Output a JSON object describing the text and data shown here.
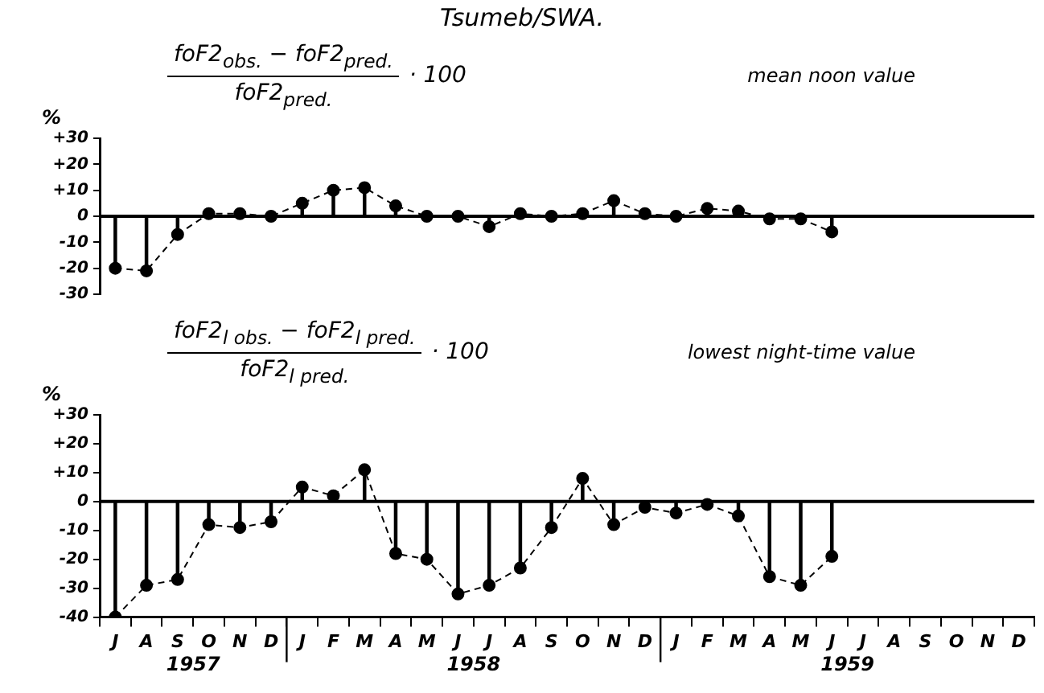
{
  "chart_data": [
    {
      "type": "lollipop",
      "title": "Tsumeb/SWA.",
      "ylabel": "%",
      "categories": [
        null,
        null,
        null,
        null,
        null,
        null,
        null,
        null,
        null,
        null,
        null,
        null,
        null,
        null,
        null,
        null,
        null,
        null,
        null,
        null,
        null,
        null,
        null,
        null,
        null,
        null,
        null,
        null,
        null,
        null
      ],
      "series": [
        {
          "color": "#000000",
          "values": [
            -20,
            -21,
            -7,
            1,
            1,
            0,
            5,
            10,
            11,
            4,
            0,
            0,
            -4,
            1,
            0,
            1,
            6,
            1,
            0,
            3,
            2,
            -1,
            -1,
            -6,
            null,
            null,
            null,
            null,
            null,
            null
          ]
        },
        {
          "type": "line",
          "color": "#000000",
          "marker": "none",
          "line_style": "dashed",
          "values": [
            -20,
            -21,
            -7,
            1,
            1,
            0,
            5,
            10,
            11,
            4,
            0,
            0,
            -4,
            1,
            0,
            1,
            6,
            1,
            0,
            3,
            2,
            -1,
            -1,
            -6,
            null,
            null,
            null,
            null,
            null,
            null
          ]
        }
      ],
      "ylim": [
        -30,
        30
      ],
      "yticks": [
        {
          "value": 30,
          "label": "+30"
        },
        {
          "value": 20,
          "label": "+20"
        },
        {
          "value": 10,
          "label": "+10"
        },
        0,
        -10,
        -20,
        -30
      ],
      "tick_labels": "y",
      "marker": "circle",
      "ref_lines": [
        {
          "axis": "y",
          "value": 0
        }
      ],
      "annotations": [
        "foF2$_{obs.}$ − foF2$_{pred.}$",
        "foF2$_{pred.}$",
        "· 100",
        "mean noon value"
      ]
    },
    {
      "type": "lollipop",
      "ylabel": "%",
      "categories": [
        "J",
        "A",
        "S",
        "O",
        "N",
        "D",
        "J",
        "F",
        "M",
        "A",
        "M",
        "J",
        "J",
        "A",
        "S",
        "O",
        "N",
        "D",
        "J",
        "F",
        "M",
        "A",
        "M",
        "J",
        "J",
        "A",
        "S",
        "O",
        "N",
        "D"
      ],
      "series": [
        {
          "color": "#000000",
          "values": [
            -40,
            -29,
            -27,
            -8,
            -9,
            -7,
            5,
            2,
            11,
            -18,
            -20,
            -32,
            -29,
            -23,
            -9,
            8,
            -8,
            -2,
            -4,
            -1,
            -5,
            -26,
            -29,
            -19,
            null,
            null,
            null,
            null,
            null,
            null
          ]
        },
        {
          "type": "line",
          "color": "#000000",
          "marker": "none",
          "line_style": "dashed",
          "values": [
            -40,
            -29,
            -27,
            -8,
            -9,
            -7,
            5,
            2,
            11,
            -18,
            -20,
            -32,
            -29,
            -23,
            -9,
            8,
            -8,
            -2,
            -4,
            -1,
            -5,
            -26,
            -29,
            -19,
            null,
            null,
            null,
            null,
            null,
            null
          ]
        }
      ],
      "ylim": [
        -40,
        30
      ],
      "yticks": [
        {
          "value": 30,
          "label": "+30"
        },
        {
          "value": 20,
          "label": "+20"
        },
        {
          "value": 10,
          "label": "+10"
        },
        0,
        -10,
        -20,
        -30,
        -40
      ],
      "marker": "circle",
      "ref_lines": [
        {
          "axis": "y",
          "value": 0
        }
      ],
      "annotations": [
        "foF2$_{l obs.}$ − foF2$_{l pred.}$",
        "foF2$_{l pred.}$",
        "· 100",
        "lowest night-time value",
        "1957",
        "1958",
        "1959"
      ]
    }
  ]
}
